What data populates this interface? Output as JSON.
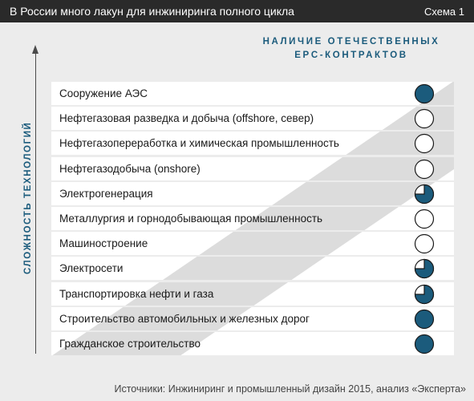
{
  "header": {
    "title": "В России много лакун для инжиниринга полного цикла",
    "scheme_label": "Схема 1"
  },
  "legend": {
    "line1": "НАЛИЧИЕ ОТЕЧЕСТВЕННЫХ",
    "line2": "EPC-КОНТРАКТОВ"
  },
  "axis": {
    "label": "СЛОЖНОСТЬ ТЕХНОЛОГИЙ"
  },
  "colors": {
    "accent": "#1b5b7c",
    "header_bg": "#2a2a2a",
    "row_bg": "#ffffff",
    "stripe": "#dcdcdc"
  },
  "rows": [
    {
      "label": "Сооружение АЭС",
      "marker_fill": 1.0
    },
    {
      "label": "Нефтегазовая разведка и добыча (offshore, север)",
      "marker_fill": 0.0
    },
    {
      "label": "Нефтегазопереработка и химическая промышленность",
      "marker_fill": 0.0
    },
    {
      "label": "Нефтегазодобыча (onshore)",
      "marker_fill": 0.0
    },
    {
      "label": "Электрогенерация",
      "marker_fill": 0.75
    },
    {
      "label": "Металлургия и горнодобывающая промышленность",
      "marker_fill": 0.0
    },
    {
      "label": "Машиностроение",
      "marker_fill": 0.0
    },
    {
      "label": "Электросети",
      "marker_fill": 0.75
    },
    {
      "label": "Транспортировка нефти и газа",
      "marker_fill": 0.75
    },
    {
      "label": "Строительство автомобильных и железных дорог",
      "marker_fill": 1.0
    },
    {
      "label": "Гражданское строительство",
      "marker_fill": 1.0
    }
  ],
  "source": "Источники: Инжиниринг и промышленный дизайн 2015, анализ «Эксперта»"
}
